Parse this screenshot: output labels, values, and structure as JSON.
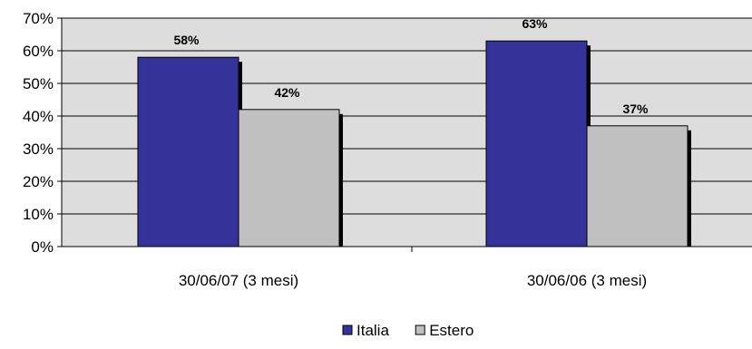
{
  "chart_data": {
    "type": "bar",
    "categories": [
      "30/06/07 (3 mesi)",
      "30/06/06 (3 mesi)"
    ],
    "series": [
      {
        "name": "Italia",
        "values": [
          58,
          63
        ],
        "labels": [
          "58%",
          "63%"
        ],
        "color": "#333399"
      },
      {
        "name": "Estero",
        "values": [
          42,
          37
        ],
        "labels": [
          "42%",
          "37%"
        ],
        "color": "#c0c0c0"
      }
    ],
    "y_ticks": [
      "0%",
      "10%",
      "20%",
      "30%",
      "40%",
      "50%",
      "60%",
      "70%"
    ],
    "ylim": [
      0,
      70
    ],
    "unit": "%",
    "legend_position": "bottom",
    "plot_background": "#dddddd"
  }
}
